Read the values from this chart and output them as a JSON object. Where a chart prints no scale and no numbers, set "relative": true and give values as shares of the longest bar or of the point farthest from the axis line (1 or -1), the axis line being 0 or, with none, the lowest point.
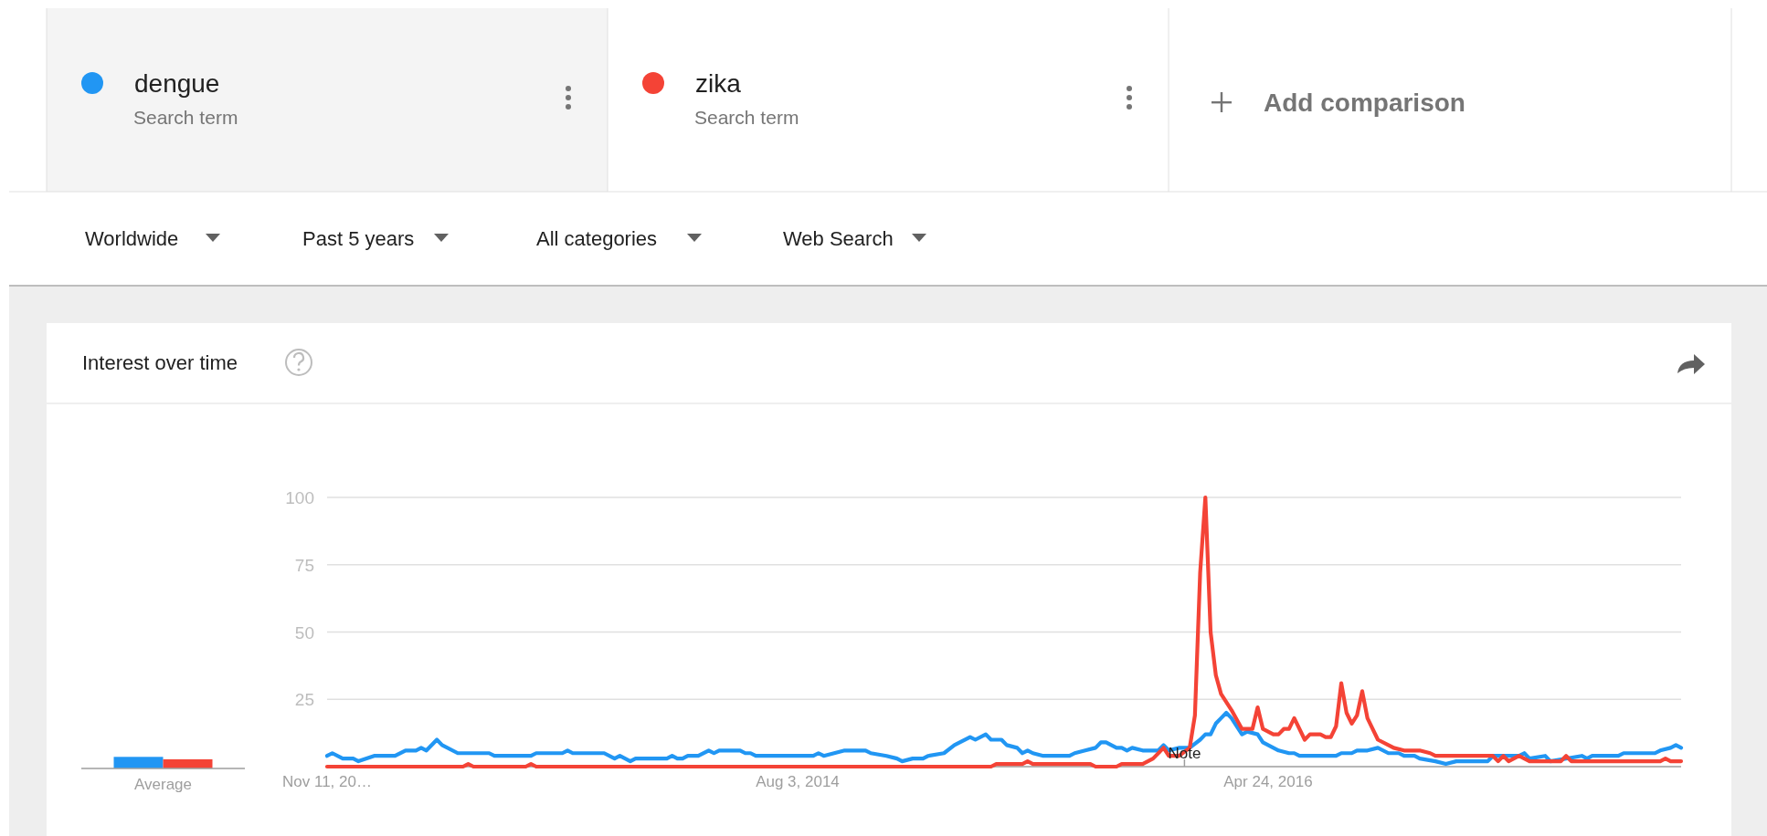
{
  "chart_data": [
    {
      "type": "bar",
      "categories": [
        "Average"
      ],
      "relative": true,
      "series": [
        {
          "color": "#2196f3",
          "values": [
            1
          ]
        },
        {
          "color": "#f44336",
          "values": [
            0.79
          ]
        }
      ]
    },
    {
      "type": "line",
      "title": "Interest over time",
      "xlim": [
        "2012-11-11",
        "2017-10-29"
      ],
      "ylim": [
        0,
        100
      ],
      "xticks": [
        {
          "value": "2012-11-11",
          "label": "Nov 11, 20…"
        },
        {
          "value": "2014-08-03",
          "label": "Aug 3, 2014"
        },
        {
          "value": "2016-04-24",
          "label": "Apr 24, 2016"
        }
      ],
      "yticks": [
        25,
        50,
        75,
        100
      ],
      "grid": "y",
      "legend": "top",
      "annotations": [
        "Search term",
        "Search term",
        "Add comparison",
        "Worldwide",
        "Past 5 years",
        "All categories",
        "Web Search",
        {
          "text": "Note",
          "x": "2016-01-03",
          "y": 5
        }
      ],
      "series": [
        {
          "name": "dengue",
          "color": "#2196f3",
          "x": [
            "2012-11-11",
            "2012-11-18",
            "2012-12-02",
            "2012-12-16",
            "2012-12-23",
            "2013-01-13",
            "2013-02-10",
            "2013-02-24",
            "2013-03-10",
            "2013-03-17",
            "2013-03-24",
            "2013-04-07",
            "2013-04-14",
            "2013-05-05",
            "2013-06-16",
            "2013-06-23",
            "2013-08-11",
            "2013-08-18",
            "2013-09-22",
            "2013-09-29",
            "2013-10-06",
            "2013-11-17",
            "2013-12-01",
            "2013-12-08",
            "2013-12-22",
            "2013-12-29",
            "2014-02-09",
            "2014-02-16",
            "2014-02-23",
            "2014-03-02",
            "2014-03-09",
            "2014-03-23",
            "2014-04-06",
            "2014-04-13",
            "2014-04-20",
            "2014-05-18",
            "2014-05-25",
            "2014-06-01",
            "2014-06-08",
            "2014-07-20",
            "2014-08-24",
            "2014-08-31",
            "2014-09-07",
            "2014-09-21",
            "2014-10-05",
            "2014-11-02",
            "2014-11-09",
            "2014-11-30",
            "2014-12-14",
            "2014-12-21",
            "2015-01-04",
            "2015-01-18",
            "2015-01-25",
            "2015-02-15",
            "2015-03-01",
            "2015-03-22",
            "2015-03-29",
            "2015-04-12",
            "2015-04-19",
            "2015-05-03",
            "2015-05-10",
            "2015-05-24",
            "2015-05-31",
            "2015-06-07",
            "2015-06-14",
            "2015-06-28",
            "2015-08-02",
            "2015-08-09",
            "2015-08-23",
            "2015-09-06",
            "2015-09-13",
            "2015-09-20",
            "2015-10-04",
            "2015-10-11",
            "2015-10-18",
            "2015-10-25",
            "2015-11-08",
            "2015-11-29",
            "2015-12-06",
            "2015-12-13",
            "2015-12-27",
            "2016-01-10",
            "2016-01-24",
            "2016-01-31",
            "2016-02-07",
            "2016-02-14",
            "2016-02-21",
            "2016-02-28",
            "2016-03-06",
            "2016-03-20",
            "2016-03-27",
            "2016-04-10",
            "2016-04-17",
            "2016-05-08",
            "2016-05-22",
            "2016-05-29",
            "2016-06-05",
            "2016-07-24",
            "2016-07-31",
            "2016-08-14",
            "2016-08-21",
            "2016-09-04",
            "2016-09-18",
            "2016-10-02",
            "2016-10-16",
            "2016-10-23",
            "2016-11-06",
            "2016-11-13",
            "2016-12-04",
            "2016-12-18",
            "2017-01-01",
            "2017-02-12",
            "2017-02-19",
            "2017-03-26",
            "2017-04-02",
            "2017-04-09",
            "2017-04-30",
            "2017-05-07",
            "2017-06-18",
            "2017-06-25",
            "2017-07-02",
            "2017-08-06",
            "2017-08-13",
            "2017-09-24",
            "2017-10-01",
            "2017-10-15",
            "2017-10-22",
            "2017-10-29"
          ],
          "values": [
            4,
            5,
            3,
            3,
            2,
            4,
            4,
            6,
            6,
            7,
            6,
            10,
            8,
            5,
            5,
            4,
            4,
            5,
            5,
            6,
            5,
            5,
            3,
            4,
            2,
            3,
            3,
            4,
            3,
            3,
            4,
            4,
            6,
            5,
            6,
            6,
            5,
            5,
            4,
            4,
            4,
            5,
            4,
            5,
            6,
            6,
            5,
            4,
            3,
            2,
            3,
            3,
            4,
            5,
            8,
            11,
            10,
            12,
            10,
            10,
            8,
            7,
            5,
            6,
            5,
            4,
            4,
            5,
            6,
            7,
            9,
            9,
            7,
            7,
            6,
            7,
            6,
            6,
            8,
            6,
            7,
            7,
            10,
            12,
            12,
            16,
            18,
            20,
            18,
            12,
            13,
            12,
            9,
            6,
            5,
            5,
            4,
            4,
            5,
            5,
            6,
            6,
            7,
            5,
            5,
            4,
            4,
            3,
            2,
            1,
            2,
            2,
            4,
            4,
            5,
            3,
            4,
            2,
            4,
            3,
            4,
            4,
            5,
            5,
            6,
            7,
            8,
            7
          ]
        },
        {
          "name": "zika",
          "color": "#f44336",
          "x": [
            "2012-11-11",
            "2013-05-12",
            "2013-05-19",
            "2013-05-26",
            "2013-08-04",
            "2013-08-11",
            "2013-08-18",
            "2015-04-19",
            "2015-04-26",
            "2015-05-31",
            "2015-06-07",
            "2015-06-14",
            "2015-08-30",
            "2015-09-06",
            "2015-10-04",
            "2015-10-11",
            "2015-11-08",
            "2015-11-22",
            "2015-12-06",
            "2015-12-13",
            "2015-12-27",
            "2016-01-10",
            "2016-01-17",
            "2016-01-24",
            "2016-01-31",
            "2016-02-07",
            "2016-02-14",
            "2016-02-21",
            "2016-03-06",
            "2016-03-20",
            "2016-04-03",
            "2016-04-10",
            "2016-04-17",
            "2016-05-01",
            "2016-05-08",
            "2016-05-15",
            "2016-05-22",
            "2016-05-29",
            "2016-06-12",
            "2016-06-19",
            "2016-07-03",
            "2016-07-10",
            "2016-07-17",
            "2016-07-24",
            "2016-07-31",
            "2016-08-07",
            "2016-08-14",
            "2016-08-21",
            "2016-08-28",
            "2016-09-04",
            "2016-09-18",
            "2016-10-09",
            "2016-10-23",
            "2016-10-30",
            "2016-11-13",
            "2016-11-27",
            "2016-12-04",
            "2017-02-19",
            "2017-02-26",
            "2017-03-05",
            "2017-03-12",
            "2017-03-26",
            "2017-04-09",
            "2017-05-21",
            "2017-05-28",
            "2017-06-04",
            "2017-09-03",
            "2017-10-01",
            "2017-10-08",
            "2017-10-15",
            "2017-10-29"
          ],
          "values": [
            0,
            0,
            1,
            0,
            0,
            1,
            0,
            0,
            1,
            1,
            2,
            1,
            1,
            0,
            0,
            1,
            1,
            3,
            7,
            4,
            4,
            7,
            19,
            72,
            100,
            50,
            34,
            27,
            21,
            14,
            14,
            22,
            14,
            12,
            12,
            14,
            14,
            18,
            10,
            12,
            12,
            11,
            11,
            15,
            31,
            20,
            16,
            19,
            28,
            18,
            10,
            7,
            6,
            6,
            6,
            5,
            4,
            4,
            2,
            4,
            2,
            4,
            2,
            2,
            4,
            2,
            2,
            2,
            3,
            2,
            2
          ]
        }
      ]
    }
  ]
}
